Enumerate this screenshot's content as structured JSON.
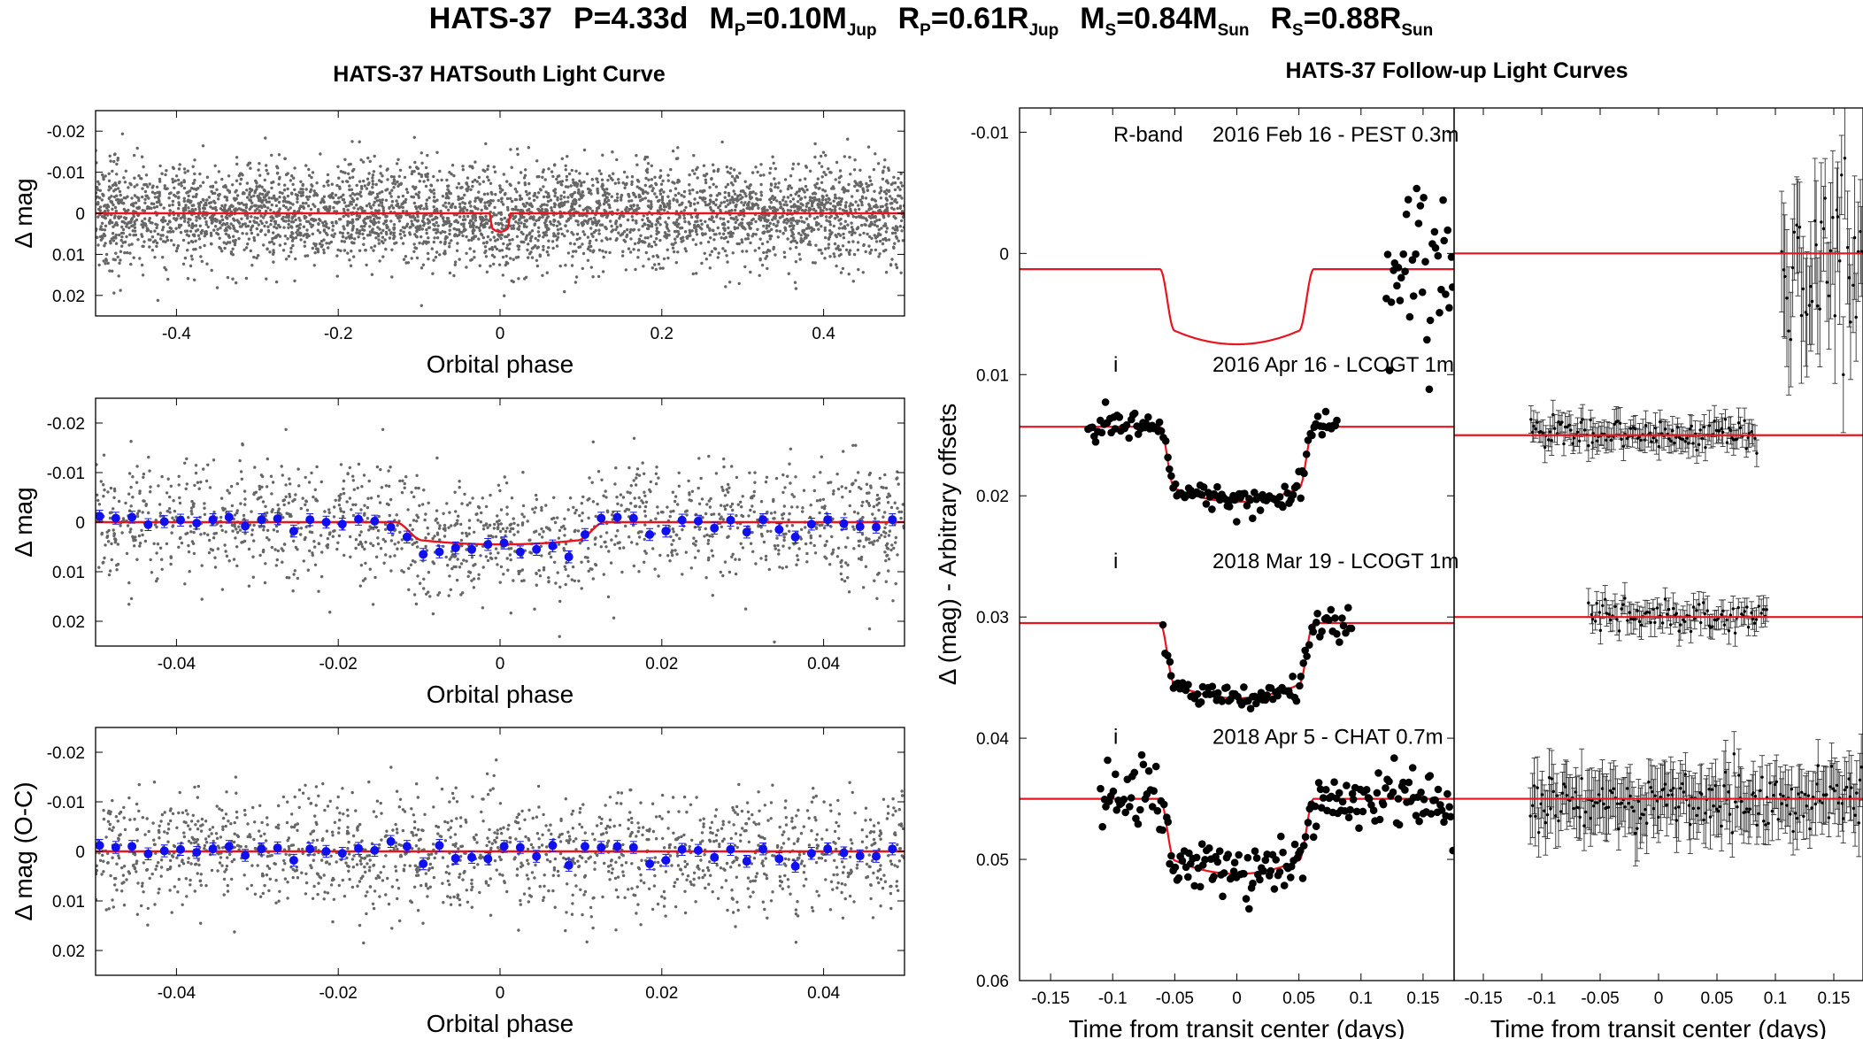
{
  "figure": {
    "title_parts": {
      "name": "HATS-37",
      "period": "P=4.33d",
      "mp_pre": "M",
      "mp_sub": "P",
      "mp_post": "=0.10M",
      "mp_unit_sub": "Jup",
      "rp_pre": "R",
      "rp_sub": "P",
      "rp_post": "=0.61R",
      "rp_unit_sub": "Jup",
      "ms_pre": "M",
      "ms_sub": "S",
      "ms_post": "=0.84M",
      "ms_unit_sub": "Sun",
      "rs_pre": "R",
      "rs_sub": "S",
      "rs_post": "=0.88R",
      "rs_unit_sub": "Sun"
    },
    "left_title": "HATS-37 HATSouth Light Curve",
    "right_title": "HATS-37 Follow-up Light Curves"
  },
  "chart_data": [
    {
      "id": "hatsouth_full",
      "type": "scatter",
      "title": "HATS-37 HATSouth Light Curve",
      "xlabel": "Orbital phase",
      "ylabel": "Δ mag",
      "xlim": [
        -0.5,
        0.5
      ],
      "ylim": [
        -0.025,
        0.025
      ],
      "y_inverted": true,
      "xticks": [
        -0.4,
        -0.2,
        0,
        0.2,
        0.4
      ],
      "xtick_labels": [
        "-0.4",
        "-0.2",
        "0",
        "0.2",
        "0.4"
      ],
      "yticks": [
        -0.02,
        -0.01,
        0,
        0.01,
        0.02
      ],
      "ytick_labels": [
        "-0.02",
        "-0.01",
        "0",
        "0.01",
        "0.02"
      ],
      "series": [
        {
          "name": "HATSouth photometry",
          "kind": "points",
          "color": "#666666",
          "n_points": 4000,
          "scatter_sigma": 0.0068
        },
        {
          "name": "Transit model",
          "kind": "model",
          "color": "#e8141e",
          "depth": 0.0045,
          "half_width": 0.013,
          "ingress": 0.0035
        }
      ]
    },
    {
      "id": "hatsouth_zoom",
      "type": "scatter",
      "xlabel": "Orbital phase",
      "ylabel": "Δ mag",
      "xlim": [
        -0.05,
        0.05
      ],
      "ylim": [
        -0.025,
        0.025
      ],
      "y_inverted": true,
      "xticks": [
        -0.04,
        -0.02,
        0,
        0.02,
        0.04
      ],
      "xtick_labels": [
        "-0.04",
        "-0.02",
        "0",
        "0.02",
        "0.04"
      ],
      "yticks": [
        -0.02,
        -0.01,
        0,
        0.01,
        0.02
      ],
      "ytick_labels": [
        "-0.02",
        "-0.01",
        "0",
        "0.01",
        "0.02"
      ],
      "series": [
        {
          "name": "HATSouth photometry",
          "kind": "points",
          "color": "#666666",
          "n_points": 1500,
          "scatter_sigma": 0.0068
        },
        {
          "name": "Transit model",
          "kind": "model",
          "color": "#e8141e",
          "depth": 0.0045,
          "half_width": 0.013,
          "ingress": 0.0035
        },
        {
          "name": "Binned",
          "kind": "binned",
          "color": "#1010ee",
          "x": [
            -0.0495,
            -0.0475,
            -0.0455,
            -0.0435,
            -0.0415,
            -0.0395,
            -0.0375,
            -0.0355,
            -0.0335,
            -0.0315,
            -0.0295,
            -0.0275,
            -0.0255,
            -0.0235,
            -0.0215,
            -0.0195,
            -0.0175,
            -0.0155,
            -0.0135,
            -0.0115,
            -0.0095,
            -0.0075,
            -0.0055,
            -0.0035,
            -0.0015,
            0.0005,
            0.0025,
            0.0045,
            0.0065,
            0.0085,
            0.0105,
            0.0125,
            0.0145,
            0.0165,
            0.0185,
            0.0205,
            0.0225,
            0.0245,
            0.0265,
            0.0285,
            0.0305,
            0.0325,
            0.0345,
            0.0365,
            0.0385,
            0.0405,
            0.0425,
            0.0445,
            0.0465,
            0.0485
          ],
          "y": [
            -0.0012,
            -0.0008,
            -0.001,
            0.0005,
            -0.0001,
            -0.0004,
            0.0002,
            -0.0005,
            -0.001,
            0.0008,
            -0.0005,
            -0.0007,
            0.0018,
            -0.0005,
            0.0,
            0.0004,
            -0.0006,
            -0.0002,
            0.001,
            0.003,
            0.0065,
            0.006,
            0.0052,
            0.0055,
            0.0045,
            0.0042,
            0.006,
            0.0055,
            0.0048,
            0.007,
            0.0025,
            -0.0008,
            -0.001,
            -0.0008,
            0.0025,
            0.0018,
            -0.0004,
            -0.0002,
            0.0012,
            -0.0004,
            0.002,
            -0.0005,
            0.0015,
            0.003,
            0.0004,
            -0.0005,
            0.0003,
            0.0009,
            0.001,
            -0.0005
          ],
          "err": 0.0012
        }
      ]
    },
    {
      "id": "hatsouth_residuals",
      "type": "scatter",
      "xlabel": "Orbital phase",
      "ylabel": "Δ mag (O-C)",
      "xlim": [
        -0.05,
        0.05
      ],
      "ylim": [
        -0.025,
        0.025
      ],
      "y_inverted": true,
      "xticks": [
        -0.04,
        -0.02,
        0,
        0.02,
        0.04
      ],
      "xtick_labels": [
        "-0.04",
        "-0.02",
        "0",
        "0.02",
        "0.04"
      ],
      "yticks": [
        -0.02,
        -0.01,
        0,
        0.01,
        0.02
      ],
      "ytick_labels": [
        "-0.02",
        "-0.01",
        "0",
        "0.01",
        "0.02"
      ],
      "series": [
        {
          "name": "Residuals",
          "kind": "points",
          "color": "#666666",
          "n_points": 1500,
          "scatter_sigma": 0.0068
        },
        {
          "name": "Zero line",
          "kind": "line",
          "color": "#e8141e",
          "y": 0
        },
        {
          "name": "Binned residuals",
          "kind": "binned",
          "color": "#1010ee",
          "x": [
            -0.0495,
            -0.0475,
            -0.0455,
            -0.0435,
            -0.0415,
            -0.0395,
            -0.0375,
            -0.0355,
            -0.0335,
            -0.0315,
            -0.0295,
            -0.0275,
            -0.0255,
            -0.0235,
            -0.0215,
            -0.0195,
            -0.0175,
            -0.0155,
            -0.0135,
            -0.0115,
            -0.0095,
            -0.0075,
            -0.0055,
            -0.0035,
            -0.0015,
            0.0005,
            0.0025,
            0.0045,
            0.0065,
            0.0085,
            0.0105,
            0.0125,
            0.0145,
            0.0165,
            0.0185,
            0.0205,
            0.0225,
            0.0245,
            0.0265,
            0.0285,
            0.0305,
            0.0325,
            0.0345,
            0.0365,
            0.0385,
            0.0405,
            0.0425,
            0.0445,
            0.0465,
            0.0485
          ],
          "y": [
            -0.0012,
            -0.0008,
            -0.001,
            0.0005,
            -0.0001,
            -0.0004,
            0.0002,
            -0.0005,
            -0.001,
            0.0008,
            -0.0005,
            -0.0007,
            0.0018,
            -0.0005,
            0.0,
            0.0004,
            -0.0006,
            -0.0002,
            -0.002,
            -0.001,
            0.0025,
            -0.0012,
            0.0014,
            0.0012,
            0.0015,
            -0.001,
            -0.0008,
            0.001,
            -0.0012,
            0.0028,
            -0.001,
            -0.0008,
            -0.001,
            -0.0008,
            0.0025,
            0.0018,
            -0.0004,
            -0.0002,
            0.0012,
            -0.0004,
            0.002,
            -0.0005,
            0.0015,
            0.003,
            0.0004,
            -0.0005,
            0.0003,
            0.0009,
            0.001,
            -0.0005
          ],
          "err": 0.0012
        }
      ]
    },
    {
      "id": "followup_lightcurves",
      "type": "scatter",
      "title": "HATS-37 Follow-up Light Curves",
      "xlabel": "Time from transit center (days)",
      "ylabel": "Δ (mag) - Arbitrary offsets",
      "xlim": [
        -0.175,
        0.175
      ],
      "ylim": [
        -0.012,
        0.06
      ],
      "y_inverted": true,
      "xticks": [
        -0.15,
        -0.1,
        -0.05,
        0,
        0.05,
        0.1,
        0.15
      ],
      "xtick_labels": [
        "-0.15",
        "-0.1",
        "-0.05",
        "0",
        "0.05",
        "0.1",
        "0.15"
      ],
      "yticks": [
        -0.01,
        0,
        0.01,
        0.02,
        0.03,
        0.04,
        0.05,
        0.06
      ],
      "ytick_labels": [
        "-0.01",
        "0",
        "0.01",
        "0.02",
        "0.03",
        "0.04",
        "0.05",
        "0.06"
      ],
      "transit": {
        "depth": 0.0062,
        "half_width": 0.062,
        "ingress": 0.012
      },
      "datasets": [
        {
          "filter": "R-band",
          "label": "2016 Feb 16 - PEST 0.3m",
          "offset": 0.0013,
          "x_range": [
            0.12,
            0.175
          ],
          "n": 40,
          "sigma": 0.0035
        },
        {
          "filter": "i",
          "label": "2016 Apr 16 - LCOGT 1m",
          "offset": 0.0143,
          "x_range": [
            -0.12,
            0.082
          ],
          "n": 130,
          "sigma": 0.0006
        },
        {
          "filter": "i",
          "label": "2018 Mar 19 - LCOGT 1m",
          "offset": 0.0305,
          "x_range": [
            -0.06,
            0.094
          ],
          "n": 90,
          "sigma": 0.0006
        },
        {
          "filter": "i",
          "label": "2018 Apr 5 - CHAT 0.7m",
          "offset": 0.045,
          "x_range": [
            -0.11,
            0.175
          ],
          "n": 200,
          "sigma": 0.0012
        }
      ],
      "model_color": "#e8141e"
    },
    {
      "id": "followup_residuals",
      "type": "scatter",
      "xlabel": "Time from transit center (days)",
      "xlim": [
        -0.175,
        0.175
      ],
      "ylim": [
        -0.012,
        0.06
      ],
      "y_inverted": true,
      "xticks": [
        -0.15,
        -0.1,
        -0.05,
        0,
        0.05,
        0.1,
        0.15
      ],
      "xtick_labels": [
        "-0.15",
        "-0.1",
        "-0.05",
        "0",
        "0.05",
        "0.1",
        "0.15"
      ],
      "datasets": [
        {
          "offset": 0.0,
          "x_range": [
            0.105,
            0.175
          ],
          "n": 45,
          "sigma": 0.004,
          "err": 0.0045
        },
        {
          "offset": 0.015,
          "x_range": [
            -0.11,
            0.085
          ],
          "n": 130,
          "sigma": 0.0006,
          "err": 0.001
        },
        {
          "offset": 0.03,
          "x_range": [
            -0.06,
            0.094
          ],
          "n": 90,
          "sigma": 0.0006,
          "err": 0.001
        },
        {
          "offset": 0.045,
          "x_range": [
            -0.11,
            0.175
          ],
          "n": 200,
          "sigma": 0.0012,
          "err": 0.0022
        }
      ],
      "model_color": "#e8141e"
    }
  ]
}
